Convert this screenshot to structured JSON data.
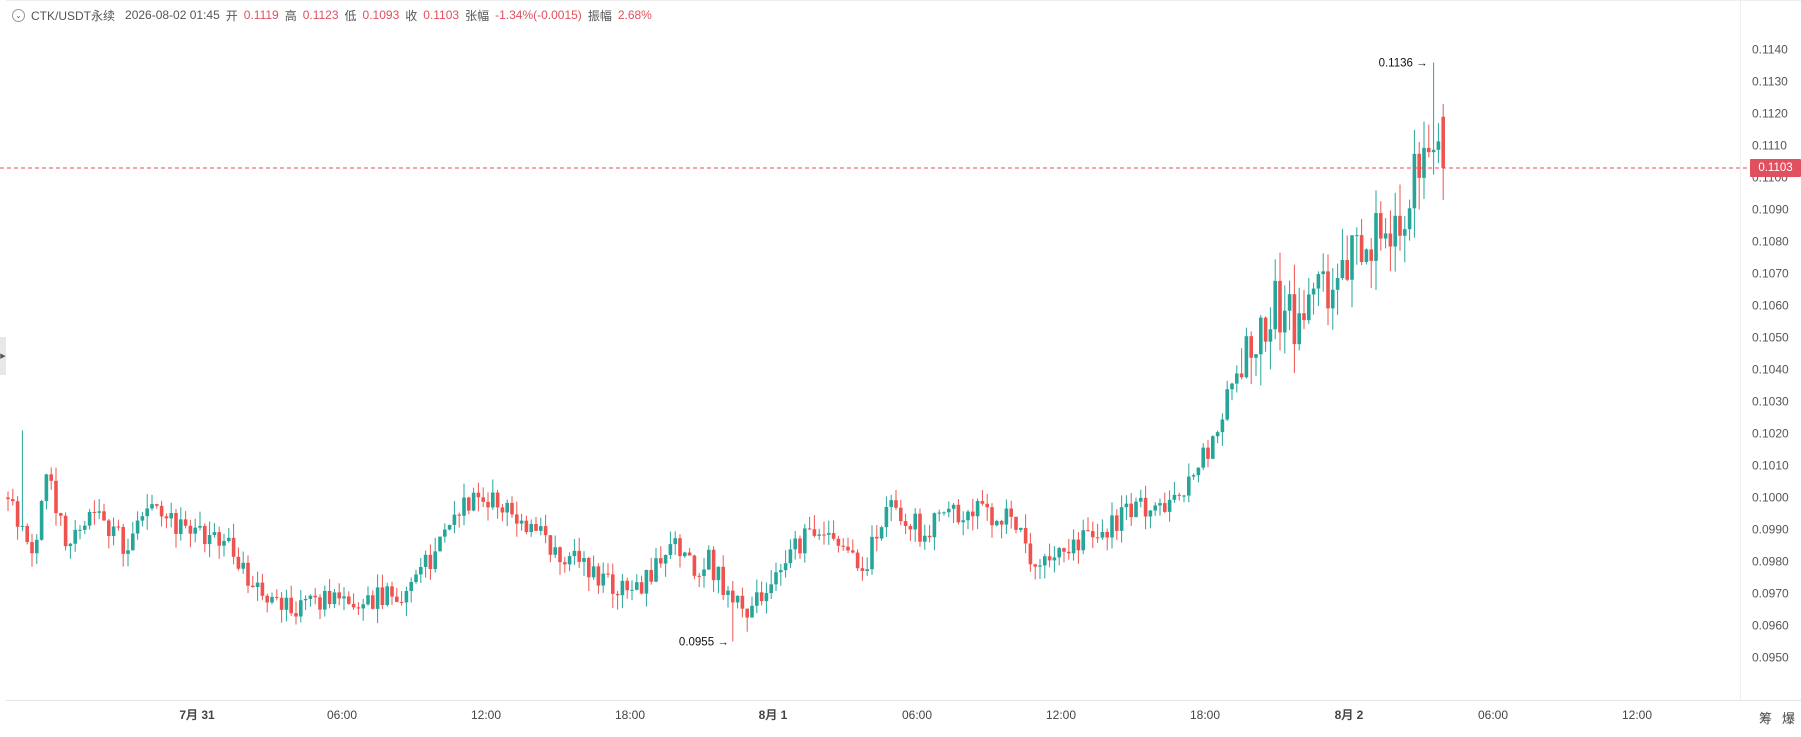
{
  "header": {
    "pair": "CTK/USDT永续",
    "datetime": "2026-08-02 01:45",
    "open_label": "开",
    "open_value": "0.1119",
    "high_label": "高",
    "high_value": "0.1123",
    "low_label": "低",
    "low_value": "0.1093",
    "close_label": "收",
    "close_value": "0.1103",
    "change_label": "张幅",
    "change_value": "-1.34%(-0.0015)",
    "amplitude_label": "振幅",
    "amplitude_value": "2.68%"
  },
  "last_price": "0.1103",
  "corner_buttons": [
    "筹",
    "爆"
  ],
  "colors": {
    "up": "#26a69a",
    "down": "#ef5350",
    "last_price": "#e0505e",
    "axis_text": "#555555"
  },
  "chart_data": {
    "type": "candlestick",
    "symbol": "CTK/USDT永续",
    "y_range": [
      0.0942,
      0.1143
    ],
    "y_ticks": [
      "0.1140",
      "0.1130",
      "0.1120",
      "0.1110",
      "0.1100",
      "0.1090",
      "0.1080",
      "0.1070",
      "0.1060",
      "0.1050",
      "0.1040",
      "0.1030",
      "0.1020",
      "0.1010",
      "0.1000",
      "0.0990",
      "0.0980",
      "0.0970",
      "0.0960",
      "0.0950"
    ],
    "x_ticks": [
      "7月 31",
      "06:00",
      "12:00",
      "18:00",
      "8月 1",
      "06:00",
      "12:00",
      "18:00",
      "8月 2",
      "06:00",
      "12:00"
    ],
    "annotations": {
      "high": "0.1136",
      "low": "0.0955"
    },
    "anchors": [
      [
        0,
        0.1
      ],
      [
        5,
        0.098
      ],
      [
        8,
        0.1008
      ],
      [
        12,
        0.0985
      ],
      [
        18,
        0.0998
      ],
      [
        24,
        0.0985
      ],
      [
        30,
        0.0996
      ],
      [
        38,
        0.099
      ],
      [
        46,
        0.0986
      ],
      [
        50,
        0.0973
      ],
      [
        56,
        0.0966
      ],
      [
        62,
        0.0967
      ],
      [
        70,
        0.0967
      ],
      [
        76,
        0.0968
      ],
      [
        82,
        0.097
      ],
      [
        88,
        0.098
      ],
      [
        94,
        0.0996
      ],
      [
        98,
        0.1002
      ],
      [
        104,
        0.0995
      ],
      [
        110,
        0.099
      ],
      [
        116,
        0.0982
      ],
      [
        122,
        0.0975
      ],
      [
        128,
        0.097
      ],
      [
        134,
        0.0974
      ],
      [
        138,
        0.0988
      ],
      [
        142,
        0.0978
      ],
      [
        146,
        0.098
      ],
      [
        150,
        0.097
      ],
      [
        154,
        0.0965
      ],
      [
        158,
        0.0972
      ],
      [
        162,
        0.0982
      ],
      [
        168,
        0.099
      ],
      [
        174,
        0.0985
      ],
      [
        178,
        0.0978
      ],
      [
        182,
        0.099
      ],
      [
        184,
        0.1002
      ],
      [
        186,
        0.0995
      ],
      [
        190,
        0.099
      ],
      [
        196,
        0.0994
      ],
      [
        202,
        0.0995
      ],
      [
        208,
        0.0993
      ],
      [
        210,
        0.099
      ],
      [
        214,
        0.0979
      ],
      [
        220,
        0.0982
      ],
      [
        226,
        0.0988
      ],
      [
        232,
        0.0993
      ],
      [
        236,
        0.0998
      ],
      [
        240,
        0.0995
      ],
      [
        244,
        0.1
      ],
      [
        248,
        0.101
      ],
      [
        252,
        0.1022
      ],
      [
        256,
        0.104
      ],
      [
        260,
        0.1048
      ],
      [
        264,
        0.106
      ],
      [
        268,
        0.1055
      ],
      [
        272,
        0.1062
      ],
      [
        276,
        0.1067
      ],
      [
        280,
        0.1075
      ],
      [
        284,
        0.1082
      ],
      [
        288,
        0.1085
      ],
      [
        292,
        0.1095
      ],
      [
        296,
        0.111
      ],
      [
        298,
        0.1119
      ],
      [
        299,
        0.1103
      ]
    ],
    "special": [
      {
        "i": 3,
        "high": 0.1021
      },
      {
        "i": 151,
        "low": 0.0955
      },
      {
        "i": 297,
        "high": 0.1136
      },
      {
        "i": 299,
        "open": 0.1119,
        "high": 0.1123,
        "low": 0.1093,
        "close": 0.1103
      }
    ]
  }
}
